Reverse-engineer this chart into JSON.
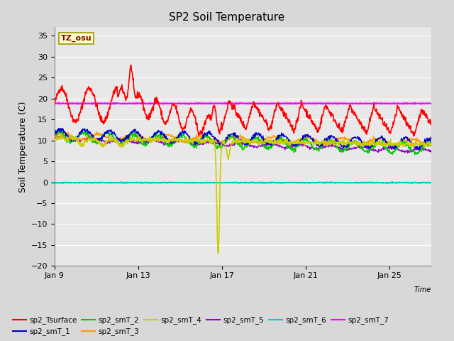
{
  "title": "SP2 Soil Temperature",
  "ylabel": "Soil Temperature (C)",
  "xlabel": "Time",
  "xlim_days": [
    9,
    27
  ],
  "ylim": [
    -20,
    37
  ],
  "yticks": [
    -20,
    -15,
    -10,
    -5,
    0,
    5,
    10,
    15,
    20,
    25,
    30,
    35
  ],
  "xtick_labels": [
    "Jan 9",
    "Jan 13",
    "Jan 17",
    "Jan 21",
    "Jan 25"
  ],
  "xtick_positions": [
    9,
    13,
    17,
    21,
    25
  ],
  "annotation_label": "TZ_osu",
  "series_colors": {
    "sp2_Tsurface": "#ff0000",
    "sp2_smT_1": "#0000cc",
    "sp2_smT_2": "#00cc00",
    "sp2_smT_3": "#ff9900",
    "sp2_smT_4": "#cccc00",
    "sp2_smT_5": "#9900cc",
    "sp2_smT_6": "#00cccc",
    "sp2_smT_7": "#ff00ff"
  },
  "background_color": "#e8e8e8",
  "title_fontsize": 11,
  "axis_fontsize": 9,
  "tick_fontsize": 8
}
